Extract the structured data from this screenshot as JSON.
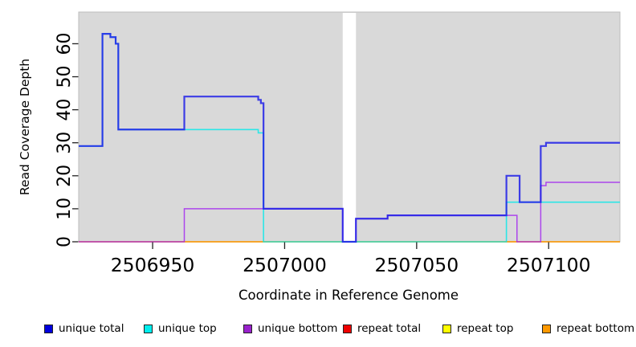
{
  "figure": {
    "background": "#ffffff",
    "plot_background": "#d9d9d9",
    "plot_border_color": "#bdbdbd",
    "tick_color": "#222222",
    "text_color": "#000000"
  },
  "chart_data": {
    "type": "line",
    "subtype": "step-coverage",
    "title": "",
    "xlabel": "Coordinate in Reference Genome",
    "ylabel": "Read Coverage Depth",
    "xlim": [
      2506922,
      2507127
    ],
    "ylim": [
      0,
      69.6
    ],
    "x_ticks": [
      2506950,
      2507000,
      2507050,
      2507100
    ],
    "y_ticks": [
      0,
      10,
      20,
      30,
      40,
      50,
      60
    ],
    "grid": false,
    "no_data_gap": {
      "from": 2507022,
      "to": 2507027,
      "color": "#ffffff"
    },
    "series": [
      {
        "name": "repeat total",
        "color": "#dd0000",
        "width": 1.2,
        "opacity": 0.8,
        "steps": [
          [
            2506922,
            0
          ]
        ]
      },
      {
        "name": "repeat top",
        "color": "#eeee00",
        "width": 1.2,
        "opacity": 0.8,
        "steps": [
          [
            2506922,
            0
          ]
        ]
      },
      {
        "name": "repeat bottom",
        "color": "#ff9000",
        "width": 1.6,
        "opacity": 0.8,
        "steps": [
          [
            2506922,
            0
          ]
        ]
      },
      {
        "name": "unique bottom",
        "color": "#a020f0",
        "width": 1.5,
        "opacity": 0.8,
        "steps": [
          [
            2506922,
            0
          ],
          [
            2506962,
            10
          ],
          [
            2507022,
            0
          ],
          [
            2507027,
            7
          ],
          [
            2507039,
            8
          ],
          [
            2507088,
            0
          ],
          [
            2507097,
            17
          ],
          [
            2507099,
            18
          ]
        ]
      },
      {
        "name": "unique top",
        "color": "#00e8e8",
        "width": 1.6,
        "opacity": 0.8,
        "steps": [
          [
            2506922,
            29
          ],
          [
            2506931,
            63
          ],
          [
            2506934,
            62
          ],
          [
            2506936,
            60
          ],
          [
            2506937,
            34
          ],
          [
            2506990,
            33
          ],
          [
            2506992,
            0
          ],
          [
            2507084,
            12
          ]
        ]
      },
      {
        "name": "unique total",
        "color": "#2020e8",
        "width": 2.2,
        "opacity": 0.85,
        "steps": [
          [
            2506922,
            29
          ],
          [
            2506931,
            63
          ],
          [
            2506934,
            62
          ],
          [
            2506936,
            60
          ],
          [
            2506937,
            34
          ],
          [
            2506962,
            44
          ],
          [
            2506990,
            43
          ],
          [
            2506991,
            42
          ],
          [
            2506992,
            10
          ],
          [
            2507022,
            0
          ],
          [
            2507027,
            7
          ],
          [
            2507039,
            8
          ],
          [
            2507084,
            20
          ],
          [
            2507089,
            12
          ],
          [
            2507097,
            29
          ],
          [
            2507099,
            30
          ]
        ]
      }
    ]
  },
  "legend": {
    "items": [
      {
        "label": "unique total",
        "color": "#0000dd"
      },
      {
        "label": "unique top",
        "color": "#00eeee"
      },
      {
        "label": "unique bottom",
        "color": "#9922cc"
      },
      {
        "label": "repeat total",
        "color": "#ee0000"
      },
      {
        "label": "repeat top",
        "color": "#ffff00"
      },
      {
        "label": "repeat bottom",
        "color": "#ff9900"
      }
    ]
  }
}
